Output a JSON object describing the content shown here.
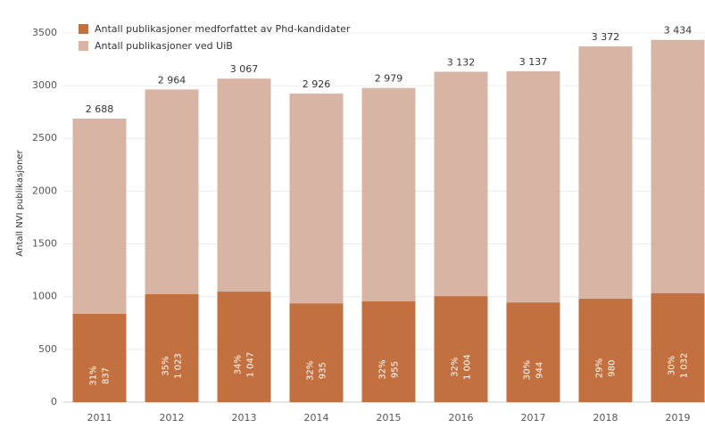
{
  "chart_data": {
    "type": "overlapping-bar",
    "ylabel": "Antall NVI publikasjoner",
    "categories": [
      "2011",
      "2012",
      "2013",
      "2014",
      "2015",
      "2016",
      "2017",
      "2018",
      "2019"
    ],
    "series": [
      {
        "name": "Antall publikasjoner ved UiB",
        "color": "#d8b4a4",
        "values": [
          2688,
          2964,
          3067,
          2926,
          2979,
          3132,
          3137,
          3372,
          3434
        ],
        "value_labels": [
          "2 688",
          "2 964",
          "3 067",
          "2 926",
          "2 979",
          "3 132",
          "3 137",
          "3 372",
          "3 434"
        ]
      },
      {
        "name": "Antall publikasjoner medforfattet av Phd-kandidater",
        "color": "#c2703f",
        "values": [
          837,
          1023,
          1047,
          935,
          955,
          1004,
          944,
          980,
          1032
        ],
        "value_labels": [
          "837",
          "1 023",
          "1 047",
          "935",
          "955",
          "1 004",
          "944",
          "980",
          "1 032"
        ]
      }
    ],
    "shares": {
      "values": [
        31,
        35,
        34,
        32,
        32,
        32,
        30,
        29,
        30
      ],
      "value_labels": [
        "31%",
        "35%",
        "34%",
        "32%",
        "32%",
        "32%",
        "30%",
        "29%",
        "30%"
      ]
    },
    "legend_order": [
      1,
      0
    ],
    "legend": "upper left",
    "ylim": [
      0,
      3770
    ],
    "yticks": [
      0,
      500,
      1000,
      1500,
      2000,
      2500,
      3000,
      3500
    ],
    "grid": true
  }
}
